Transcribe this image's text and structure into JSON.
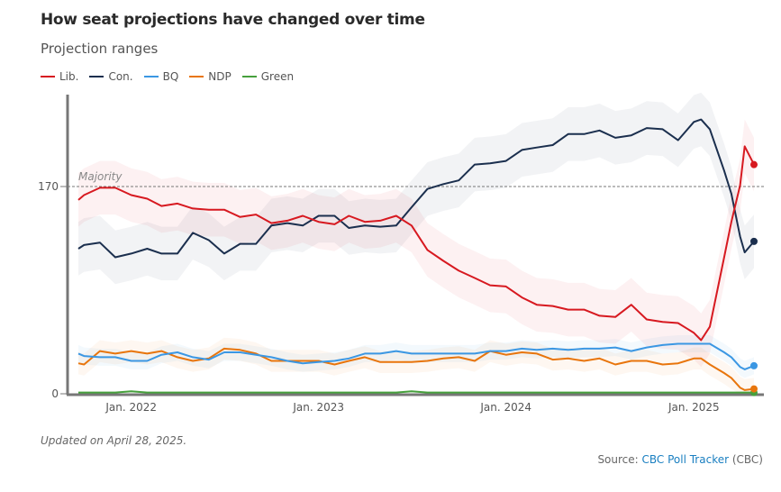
{
  "header": {
    "title": "How seat projections have changed over time",
    "subtitle": "Projection ranges"
  },
  "footer": {
    "updated": "Updated on April 28, 2025.",
    "source_prefix": "Source: ",
    "source_link": "CBC Poll Tracker",
    "source_suffix": " (CBC)"
  },
  "chart_data": {
    "type": "line",
    "title": "How seat projections have changed over time",
    "subtitle": "Projection ranges",
    "xlabel": "",
    "ylabel": "",
    "ylim": [
      0,
      245
    ],
    "xlim": [
      "2021-09-20",
      "2025-04-28"
    ],
    "y_ticks": [
      0,
      170
    ],
    "x_ticks": [
      {
        "date": "2022-01-01",
        "label": "Jan. 2022"
      },
      {
        "date": "2023-01-01",
        "label": "Jan. 2023"
      },
      {
        "date": "2024-01-01",
        "label": "Jan. 2024"
      },
      {
        "date": "2025-01-01",
        "label": "Jan. 2025"
      }
    ],
    "reference_line": {
      "value": 170,
      "label": "Majority"
    },
    "legend_placement": "top-left",
    "grid": false,
    "x": [
      "2021-09-20",
      "2021-10-01",
      "2021-11-01",
      "2021-12-01",
      "2022-01-01",
      "2022-02-01",
      "2022-03-01",
      "2022-04-01",
      "2022-05-01",
      "2022-06-01",
      "2022-07-01",
      "2022-08-01",
      "2022-09-01",
      "2022-10-01",
      "2022-11-01",
      "2022-12-01",
      "2023-01-01",
      "2023-02-01",
      "2023-03-01",
      "2023-04-01",
      "2023-05-01",
      "2023-06-01",
      "2023-07-01",
      "2023-08-01",
      "2023-09-01",
      "2023-10-01",
      "2023-11-01",
      "2023-12-01",
      "2024-01-01",
      "2024-02-01",
      "2024-03-01",
      "2024-04-01",
      "2024-05-01",
      "2024-06-01",
      "2024-07-01",
      "2024-08-01",
      "2024-09-01",
      "2024-10-01",
      "2024-11-01",
      "2024-12-01",
      "2025-01-01",
      "2025-01-15",
      "2025-02-01",
      "2025-03-01",
      "2025-03-15",
      "2025-04-01",
      "2025-04-10",
      "2025-04-28"
    ],
    "series": [
      {
        "name": "Lib.",
        "color": "#d71920",
        "range_halfwidth": 22,
        "values": [
          159,
          163,
          169,
          169,
          163,
          160,
          154,
          156,
          152,
          151,
          151,
          145,
          147,
          140,
          142,
          146,
          141,
          139,
          146,
          141,
          142,
          146,
          138,
          118,
          109,
          101,
          95,
          89,
          88,
          79,
          73,
          72,
          69,
          69,
          64,
          63,
          73,
          61,
          59,
          58,
          50,
          44,
          55,
          112,
          141,
          171,
          203,
          188
        ]
      },
      {
        "name": "Con.",
        "color": "#1b2f4e",
        "range_halfwidth": 22,
        "values": [
          119,
          122,
          124,
          112,
          115,
          119,
          115,
          115,
          132,
          126,
          115,
          123,
          123,
          138,
          140,
          138,
          146,
          146,
          136,
          138,
          137,
          138,
          153,
          168,
          172,
          175,
          188,
          189,
          191,
          200,
          202,
          204,
          213,
          213,
          216,
          210,
          212,
          218,
          217,
          208,
          223,
          225,
          217,
          183,
          164,
          129,
          116,
          125
        ]
      },
      {
        "name": "BQ",
        "color": "#3b97e3",
        "range_halfwidth": 7,
        "values": [
          33,
          31,
          30,
          30,
          27,
          27,
          32,
          34,
          30,
          28,
          34,
          34,
          32,
          30,
          27,
          25,
          26,
          27,
          29,
          33,
          33,
          35,
          33,
          33,
          33,
          33,
          33,
          35,
          35,
          37,
          36,
          37,
          36,
          37,
          37,
          38,
          35,
          38,
          40,
          41,
          41,
          41,
          41,
          34,
          30,
          22,
          20,
          23
        ]
      },
      {
        "name": "NDP",
        "color": "#e8750c",
        "range_halfwidth": 9,
        "values": [
          25,
          24,
          35,
          33,
          35,
          33,
          35,
          30,
          27,
          29,
          37,
          36,
          33,
          27,
          27,
          27,
          27,
          24,
          27,
          30,
          26,
          26,
          26,
          27,
          29,
          30,
          27,
          35,
          32,
          34,
          33,
          28,
          29,
          27,
          29,
          24,
          27,
          27,
          24,
          25,
          29,
          29,
          24,
          17,
          13,
          5,
          3,
          4
        ]
      },
      {
        "name": "Green",
        "color": "#46a03c",
        "range_halfwidth": 1,
        "values": [
          1,
          1,
          1,
          1,
          2,
          1,
          1,
          1,
          1,
          1,
          1,
          1,
          1,
          1,
          1,
          1,
          1,
          1,
          1,
          1,
          1,
          1,
          2,
          1,
          1,
          1,
          1,
          1,
          1,
          1,
          1,
          1,
          1,
          1,
          1,
          1,
          1,
          1,
          1,
          1,
          1,
          1,
          1,
          1,
          1,
          1,
          1,
          1
        ]
      }
    ]
  }
}
